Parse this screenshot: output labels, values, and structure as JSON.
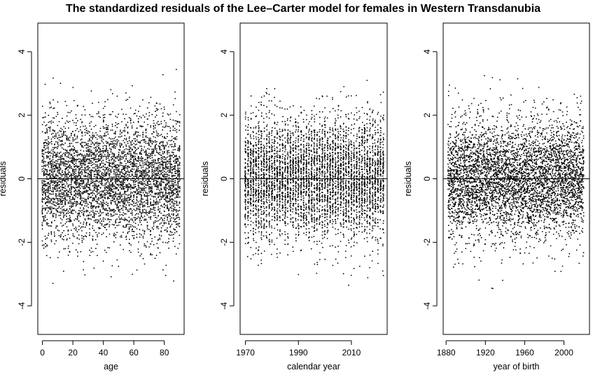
{
  "title": "The standardized residuals of the Lee–Carter model for females in Western Transdanubia",
  "chart_data": [
    {
      "type": "scatter",
      "xlabel": "age",
      "ylabel": "residuals",
      "xlim": [
        -3,
        93
      ],
      "ylim": [
        -4.9,
        4.9
      ],
      "xticks": [
        0,
        20,
        40,
        60,
        80
      ],
      "yticks": [
        -4,
        -2,
        0,
        2,
        4
      ],
      "grid": false,
      "reference_line_y": 0,
      "generator": {
        "x_from": 0,
        "x_to": 90,
        "x_step": 1,
        "points_per_x": 52,
        "spread": 0.95,
        "seed": 11
      }
    },
    {
      "type": "scatter",
      "xlabel": "calendar year",
      "ylabel": "residuals",
      "xlim": [
        1968,
        2023.5
      ],
      "ylim": [
        -4.9,
        4.9
      ],
      "xticks": [
        1970,
        1990,
        2010
      ],
      "yticks": [
        -4,
        -2,
        0,
        2,
        4
      ],
      "grid": false,
      "reference_line_y": 0,
      "generator": {
        "x_from": 1970,
        "x_to": 2022,
        "x_step": 1,
        "points_per_x": 90,
        "spread": 0.95,
        "seed": 23
      }
    },
    {
      "type": "scatter",
      "xlabel": "year of birth",
      "ylabel": "residuals",
      "xlim": [
        1877,
        2026
      ],
      "ylim": [
        -4.9,
        4.9
      ],
      "xticks": [
        1880,
        1920,
        1960,
        2000
      ],
      "yticks": [
        -4,
        -2,
        0,
        2,
        4
      ],
      "grid": false,
      "reference_line_y": 0,
      "generator": {
        "x_from": 1882,
        "x_to": 2020,
        "x_step": 0.5,
        "points_per_x": 17,
        "spread": 0.95,
        "seed": 37
      }
    }
  ]
}
